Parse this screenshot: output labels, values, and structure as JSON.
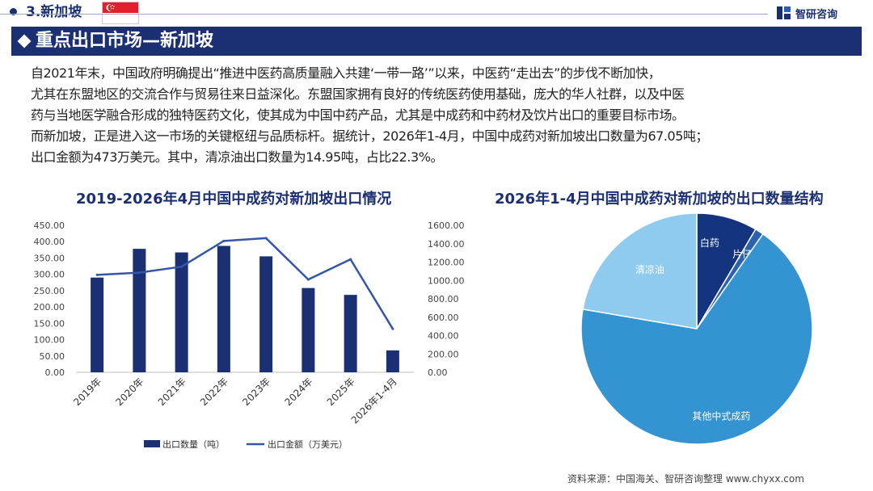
{
  "header": {
    "section": "3.新加坡",
    "brand": "智研咨询"
  },
  "banner": {
    "title": "重点出口市场—新加坡"
  },
  "paragraph": [
    "自2021年末，中国政府明确提出“推进中医药高质量融入共建‘一带一路’”以来，中医药“走出去”的步伐不断加快，",
    "尤其在东盟地区的交流合作与贸易往来日益深化。东盟国家拥有良好的传统医药使用基础，庞大的华人社群，以及中医",
    "药与当地医学融合形成的独特医药文化，使其成为中国中药产品，尤其是中成药和中药材及饮片出口的重要目标市场。",
    "而新加坡，正是进入这一市场的关键枢纽与品质标杆。据统计，2026年1-4月，中国中成药对新加坡出口数量为67.05吨；",
    "出口金额为473万美元。其中，清凉油出口数量为14.95吨，占比22.3%。"
  ],
  "colors": {
    "navy": "#1b2f73",
    "bar": "#1b2f73",
    "line": "#3556a6",
    "pie_baiyao": "#14347f",
    "pie_pianzaihuang": "#2b62b0",
    "pie_other": "#3493d1",
    "pie_qingliangyou": "#8fcaef"
  },
  "chart_data": [
    {
      "type": "bar",
      "title": "2019-2026年4月中国中成药对新加坡出口情况",
      "categories": [
        "2019年",
        "2020年",
        "2021年",
        "2022年",
        "2023年",
        "2024年",
        "2025年",
        "2026年1-4月"
      ],
      "series": [
        {
          "name": "出口数量（吨）",
          "type": "bar",
          "axis": "left",
          "values": [
            290,
            378,
            367,
            387,
            355,
            258,
            237,
            67.05
          ]
        },
        {
          "name": "出口金额（万美元）",
          "type": "line",
          "axis": "right",
          "values": [
            1060,
            1085,
            1150,
            1430,
            1460,
            1010,
            1230,
            473
          ]
        }
      ],
      "y_left": {
        "range": [
          0,
          450
        ],
        "ticks": [
          "0.00",
          "50.00",
          "100.00",
          "150.00",
          "200.00",
          "250.00",
          "300.00",
          "350.00",
          "400.00",
          "450.00"
        ]
      },
      "y_right": {
        "range": [
          0,
          1600
        ],
        "ticks": [
          "0.00",
          "200.00",
          "400.00",
          "600.00",
          "800.00",
          "1000.00",
          "1200.00",
          "1400.00",
          "1600.00"
        ]
      },
      "legend": {
        "position": "bottom",
        "items": [
          "出口数量（吨）",
          "出口金额（万美元）"
        ]
      },
      "grid": false
    },
    {
      "type": "pie",
      "title": "2026年1-4月中国中成药对新加坡的出口数量结构",
      "slices": [
        {
          "label": "白药",
          "value": 8.5
        },
        {
          "label": "片仔癀",
          "value": 1.2
        },
        {
          "label": "其他中式成药",
          "value": 68.0
        },
        {
          "label": "清凉油",
          "value": 22.3
        }
      ],
      "legend": "none"
    }
  ],
  "footer": {
    "source": "资料来源：中国海关、智研咨询整理  www.chyxx.com"
  }
}
